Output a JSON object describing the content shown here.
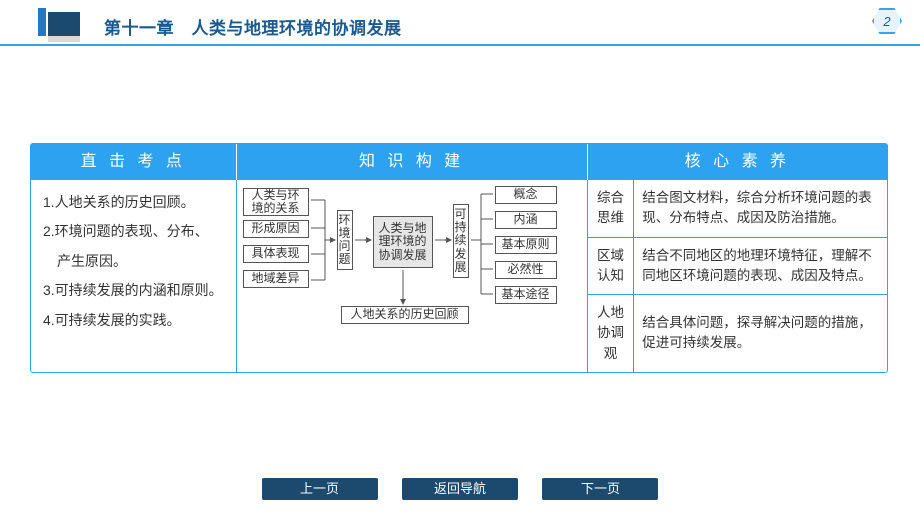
{
  "header": {
    "chapter_title": "第十一章　人类与地理环境的协调发展",
    "page_badge": "2",
    "colors": {
      "accent": "#2da3ef",
      "dark": "#1b4a6e",
      "title": "#1b5a8f"
    }
  },
  "columns": {
    "exam": {
      "header": "直 击 考 点",
      "items": [
        "1.人地关系的历史回顾。",
        "2.环境问题的表现、分布、",
        "　产生原因。",
        "3.可持续发展的内涵和原则。",
        "4.可持续发展的实践。"
      ]
    },
    "structure": {
      "header": "知 识 构 建",
      "diagram": {
        "left_nodes": [
          "人类与环\n境的关系",
          "形成原因",
          "具体表现",
          "地域差异"
        ],
        "left_label": "环\n境\n问\n题",
        "center": "人类与地\n理环境的\n协调发展",
        "right_label": "可\n持\n续\n发\n展",
        "right_nodes": [
          "概念",
          "内涵",
          "基本原则",
          "必然性",
          "基本途径"
        ],
        "bottom": "人地关系的历史回顾",
        "node_border": "#555555",
        "node_bg": "#ffffff",
        "center_bg": "#e6e6e6",
        "arrow_color": "#555555",
        "font_size": 12
      }
    },
    "competency": {
      "header": "核 心 素 养",
      "rows": [
        {
          "label": "综合\n思维",
          "text": "结合图文材料，综合分析环境问题的表现、分布特点、成因及防治措施。"
        },
        {
          "label": "区域\n认知",
          "text": "结合不同地区的地理环境特征，理解不同地区环境问题的表现、成因及特点。"
        },
        {
          "label": "人地\n协调观",
          "text": "结合具体问题，探寻解决问题的措施，促进可持续发展。"
        }
      ]
    }
  },
  "footer": {
    "prev": "上一页",
    "home": "返回导航",
    "next": "下一页"
  }
}
